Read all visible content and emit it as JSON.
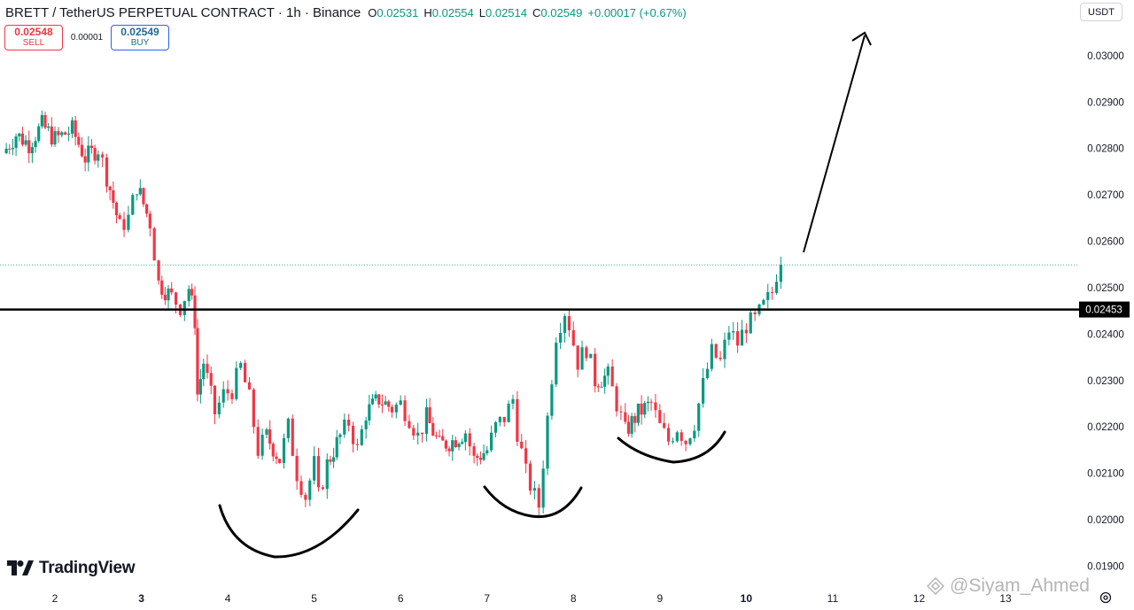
{
  "header": {
    "symbol": "BRETT / TetherUS PERPETUAL CONTRACT · 1h · Binance",
    "o_label": "O",
    "o_value": "0.02531",
    "h_label": "H",
    "h_value": "0.02554",
    "l_label": "L",
    "l_value": "0.02514",
    "c_label": "C",
    "c_value": "0.02549",
    "change": "+0.00017 (+0.67%)"
  },
  "trade": {
    "sell_price": "0.02548",
    "sell_label": "SELL",
    "spread": "0.00001",
    "buy_price": "0.02549",
    "buy_label": "BUY"
  },
  "currency": "USDT",
  "brand": {
    "name": "TradingView"
  },
  "watermark": "@Siyam_Ahmed",
  "colors": {
    "up": "#089981",
    "down": "#f23645",
    "resistance_line": "#000000",
    "last_price_line": "#089981"
  },
  "chart_data": {
    "type": "candlestick",
    "timeframe": "1h",
    "y_axis": {
      "ticks": [
        "0.03000",
        "0.02900",
        "0.02800",
        "0.02700",
        "0.02600",
        "0.02500",
        "0.02400",
        "0.02300",
        "0.02200",
        "0.02100",
        "0.02000",
        "0.01900"
      ],
      "range": [
        0.0188,
        0.03055
      ]
    },
    "x_axis": {
      "ticks": [
        "2",
        "3",
        "4",
        "5",
        "6",
        "7",
        "8",
        "9",
        "10",
        "11",
        "12",
        "13"
      ],
      "bold_ticks": [
        "3",
        "10"
      ],
      "day_range": [
        2,
        13
      ]
    },
    "resistance_label": "0.02453",
    "resistance_value": 0.02453,
    "last_price": 0.02549,
    "price_path": [
      [
        1.4,
        0.0279
      ],
      [
        1.55,
        0.0283
      ],
      [
        1.7,
        0.0281
      ],
      [
        1.85,
        0.0285
      ],
      [
        2.0,
        0.0282
      ],
      [
        2.2,
        0.0284
      ],
      [
        2.35,
        0.0278
      ],
      [
        2.5,
        0.028
      ],
      [
        2.6,
        0.0274
      ],
      [
        2.75,
        0.0263
      ],
      [
        2.85,
        0.0265
      ],
      [
        2.95,
        0.0272
      ],
      [
        3.1,
        0.0264
      ],
      [
        3.2,
        0.0251
      ],
      [
        3.35,
        0.0248
      ],
      [
        3.45,
        0.0246
      ],
      [
        3.55,
        0.025
      ],
      [
        3.62,
        0.0243
      ],
      [
        3.65,
        0.0227
      ],
      [
        3.72,
        0.0234
      ],
      [
        3.85,
        0.0223
      ],
      [
        3.95,
        0.0227
      ],
      [
        4.05,
        0.0228
      ],
      [
        4.15,
        0.0233
      ],
      [
        4.25,
        0.0226
      ],
      [
        4.35,
        0.0215
      ],
      [
        4.45,
        0.0218
      ],
      [
        4.6,
        0.0213
      ],
      [
        4.7,
        0.022
      ],
      [
        4.8,
        0.021
      ],
      [
        4.9,
        0.0205
      ],
      [
        5.0,
        0.0212
      ],
      [
        5.05,
        0.0205
      ],
      [
        5.15,
        0.0212
      ],
      [
        5.3,
        0.0218
      ],
      [
        5.4,
        0.0221
      ],
      [
        5.5,
        0.0215
      ],
      [
        5.6,
        0.0223
      ],
      [
        5.75,
        0.0226
      ],
      [
        5.9,
        0.0224
      ],
      [
        6.0,
        0.0225
      ],
      [
        6.1,
        0.0222
      ],
      [
        6.2,
        0.0218
      ],
      [
        6.3,
        0.0222
      ],
      [
        6.45,
        0.0216
      ],
      [
        6.6,
        0.0217
      ],
      [
        6.75,
        0.0219
      ],
      [
        6.85,
        0.0213
      ],
      [
        7.0,
        0.0215
      ],
      [
        7.1,
        0.022
      ],
      [
        7.2,
        0.0222
      ],
      [
        7.3,
        0.0226
      ],
      [
        7.35,
        0.0219
      ],
      [
        7.45,
        0.021
      ],
      [
        7.55,
        0.0205
      ],
      [
        7.6,
        0.0203
      ],
      [
        7.7,
        0.0222
      ],
      [
        7.8,
        0.024
      ],
      [
        7.9,
        0.0245
      ],
      [
        7.95,
        0.0242
      ],
      [
        8.05,
        0.0234
      ],
      [
        8.15,
        0.0237
      ],
      [
        8.25,
        0.023
      ],
      [
        8.4,
        0.0231
      ],
      [
        8.5,
        0.0225
      ],
      [
        8.6,
        0.0219
      ],
      [
        8.75,
        0.0223
      ],
      [
        8.9,
        0.0225
      ],
      [
        9.0,
        0.022
      ],
      [
        9.1,
        0.0217
      ],
      [
        9.2,
        0.022
      ],
      [
        9.3,
        0.0217
      ],
      [
        9.4,
        0.0221
      ],
      [
        9.5,
        0.0229
      ],
      [
        9.6,
        0.0236
      ],
      [
        9.7,
        0.0234
      ],
      [
        9.8,
        0.0241
      ],
      [
        9.9,
        0.0238
      ],
      [
        10.0,
        0.0242
      ],
      [
        10.1,
        0.0243
      ],
      [
        10.2,
        0.0246
      ],
      [
        10.3,
        0.0249
      ],
      [
        10.35,
        0.02531
      ],
      [
        10.4,
        0.02549
      ]
    ]
  }
}
